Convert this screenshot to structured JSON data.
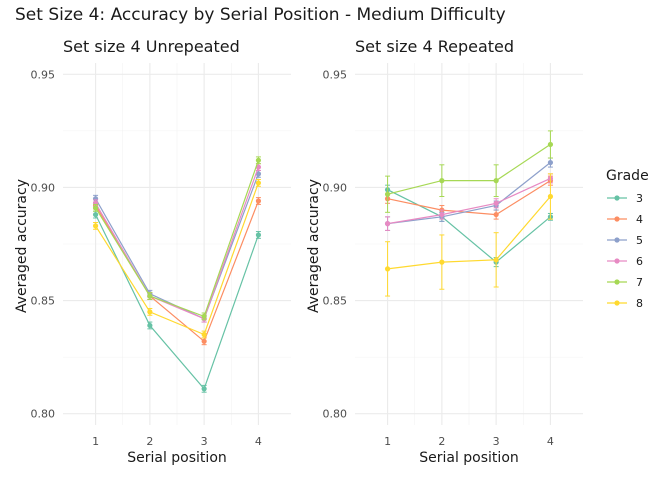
{
  "figure_title": "Set Size 4: Accuracy by Serial Position - Medium Difficulty",
  "legend": {
    "title": "Grade",
    "placement": "right",
    "entries": [
      {
        "label": "3",
        "color": "#66c2a5"
      },
      {
        "label": "4",
        "color": "#fc8d62"
      },
      {
        "label": "5",
        "color": "#8da0cb"
      },
      {
        "label": "6",
        "color": "#e78ac3"
      },
      {
        "label": "7",
        "color": "#a6d854"
      },
      {
        "label": "8",
        "color": "#ffd92f"
      }
    ]
  },
  "chart_data": [
    {
      "type": "line",
      "title": "Set size 4 Unrepeated",
      "xlabel": "Serial position",
      "ylabel": "Averaged accuracy",
      "x": [
        1,
        2,
        3,
        4
      ],
      "x_ticks": [
        "1",
        "2",
        "3",
        "4"
      ],
      "ylim": [
        0.795,
        0.955
      ],
      "xlim": [
        0.4,
        4.6
      ],
      "y_ticks": [
        "0.80",
        "0.85",
        "0.90",
        "0.95"
      ],
      "grid": true,
      "series": [
        {
          "name": "3",
          "color": "#66c2a5",
          "values": [
            0.888,
            0.839,
            0.811,
            0.879
          ],
          "err": [
            0.0015,
            0.0015,
            0.0015,
            0.0015
          ]
        },
        {
          "name": "4",
          "color": "#fc8d62",
          "values": [
            0.892,
            0.852,
            0.832,
            0.894
          ],
          "err": [
            0.0015,
            0.0015,
            0.0015,
            0.0015
          ]
        },
        {
          "name": "5",
          "color": "#8da0cb",
          "values": [
            0.895,
            0.853,
            0.842,
            0.906
          ],
          "err": [
            0.0015,
            0.0015,
            0.0015,
            0.0015
          ]
        },
        {
          "name": "6",
          "color": "#e78ac3",
          "values": [
            0.893,
            0.852,
            0.842,
            0.909
          ],
          "err": [
            0.0015,
            0.0015,
            0.0015,
            0.0015
          ]
        },
        {
          "name": "7",
          "color": "#a6d854",
          "values": [
            0.891,
            0.852,
            0.843,
            0.912
          ],
          "err": [
            0.0015,
            0.0015,
            0.0015,
            0.0015
          ]
        },
        {
          "name": "8",
          "color": "#ffd92f",
          "values": [
            0.883,
            0.845,
            0.835,
            0.902
          ],
          "err": [
            0.0015,
            0.0015,
            0.0015,
            0.0015
          ]
        }
      ]
    },
    {
      "type": "line",
      "title": "Set size 4 Repeated",
      "xlabel": "Serial position",
      "ylabel": "Averaged accuracy",
      "x": [
        1,
        2,
        3,
        4
      ],
      "x_ticks": [
        "1",
        "2",
        "3",
        "4"
      ],
      "ylim": [
        0.795,
        0.955
      ],
      "xlim": [
        0.4,
        4.6
      ],
      "y_ticks": [
        "0.80",
        "0.85",
        "0.90",
        "0.95"
      ],
      "grid": true,
      "series": [
        {
          "name": "3",
          "color": "#66c2a5",
          "values": [
            0.899,
            0.887,
            0.867,
            0.887
          ],
          "err": [
            0.002,
            0.002,
            0.002,
            0.0015
          ]
        },
        {
          "name": "4",
          "color": "#fc8d62",
          "values": [
            0.895,
            0.89,
            0.888,
            0.903
          ],
          "err": [
            0.002,
            0.002,
            0.002,
            0.002
          ]
        },
        {
          "name": "5",
          "color": "#8da0cb",
          "values": [
            0.884,
            0.887,
            0.892,
            0.911
          ],
          "err": [
            0.003,
            0.002,
            0.002,
            0.002
          ]
        },
        {
          "name": "6",
          "color": "#e78ac3",
          "values": [
            0.884,
            0.888,
            0.893,
            0.904
          ],
          "err": [
            0.003,
            0.002,
            0.002,
            0.002
          ]
        },
        {
          "name": "7",
          "color": "#a6d854",
          "values": [
            0.897,
            0.903,
            0.903,
            0.919
          ],
          "err": [
            0.008,
            0.007,
            0.007,
            0.006
          ]
        },
        {
          "name": "8",
          "color": "#ffd92f",
          "values": [
            0.864,
            0.867,
            0.868,
            0.896
          ],
          "err": [
            0.012,
            0.012,
            0.012,
            0.01
          ]
        }
      ]
    }
  ]
}
